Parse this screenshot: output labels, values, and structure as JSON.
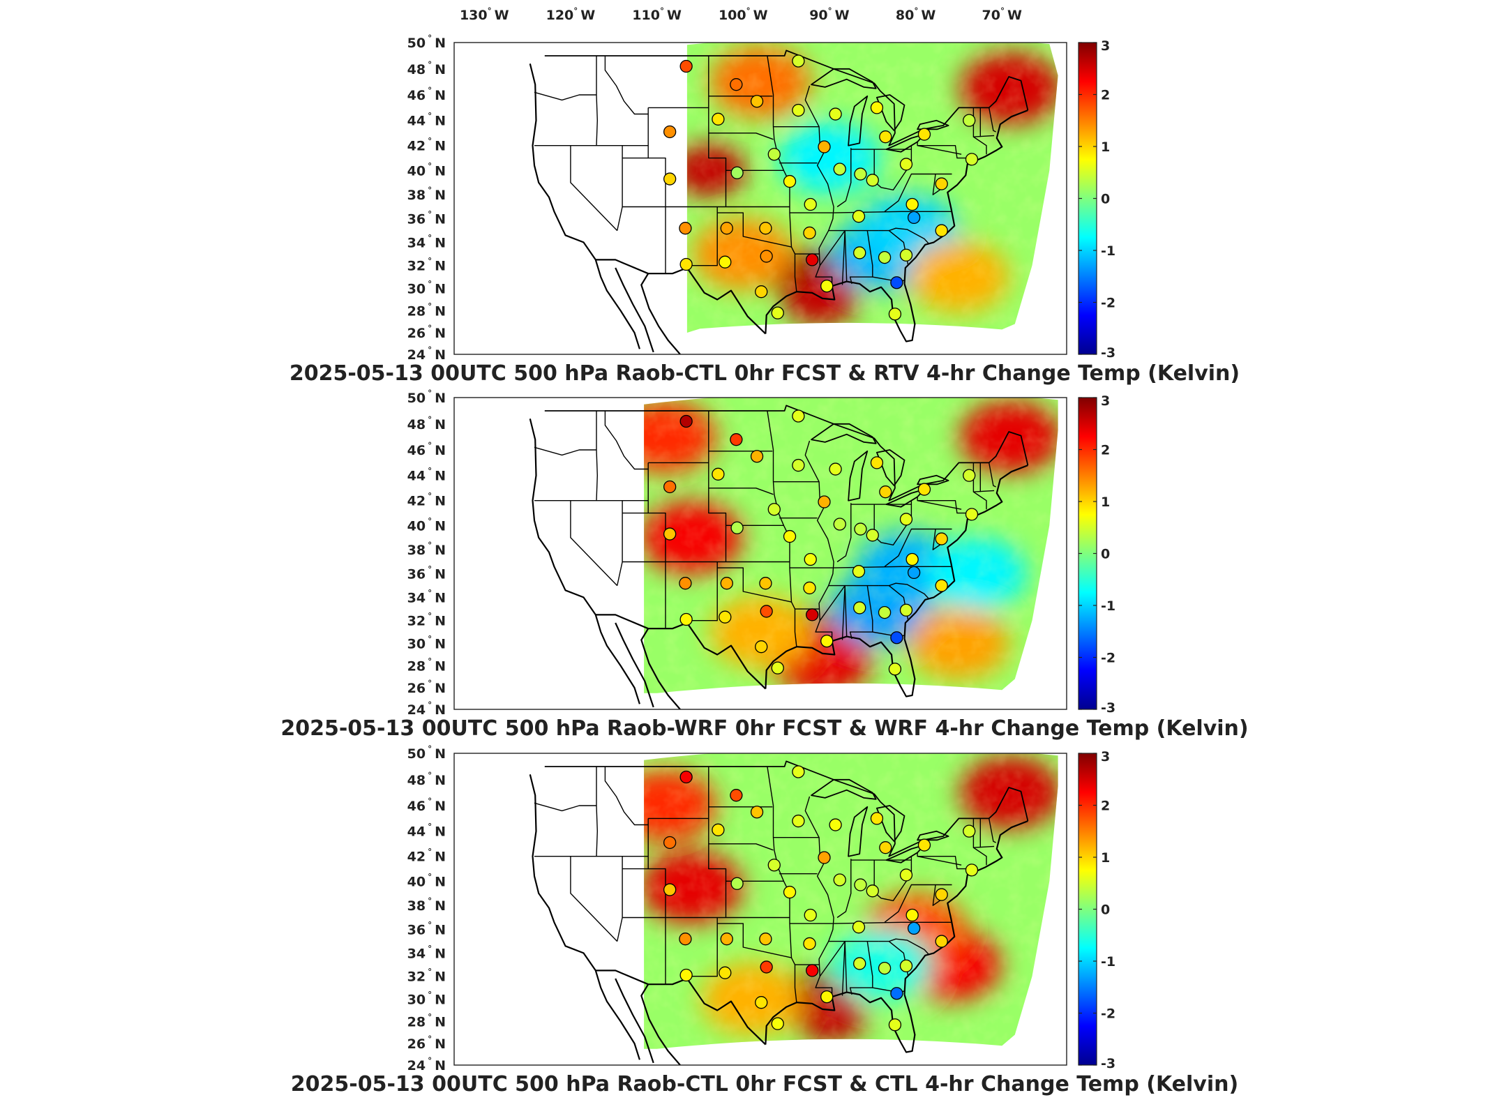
{
  "lon_labels": [
    "130",
    "120",
    "110",
    "100",
    "90",
    "80",
    "70"
  ],
  "lon_label_suffix": "W",
  "lat_labels": [
    "50",
    "48",
    "46",
    "44",
    "42",
    "40",
    "38",
    "36",
    "34",
    "32",
    "30",
    "28",
    "26",
    "24"
  ],
  "lat_label_suffix": "N",
  "colorbar": {
    "ticks": [
      "3",
      "2",
      "1",
      "0",
      "-1",
      "-2",
      "-3"
    ],
    "vmin": -3,
    "vmax": 3,
    "colormap": "jet"
  },
  "panels": [
    {
      "title": "2025-05-13 00UTC 500 hPa Raob-CTL 0hr FCST & RTV 4-hr Change Temp (Kelvin)",
      "field_model": "RTV",
      "field_west_lon": -106.5,
      "field_south_lat": 26.0,
      "hotspots": [
        {
          "lon": -104,
          "lat": 40,
          "value": 2.6
        },
        {
          "lon": -92.5,
          "lat": 31,
          "value": 3.0
        },
        {
          "lon": -91,
          "lat": 29,
          "value": 2.6
        },
        {
          "lon": -69,
          "lat": 46.5,
          "value": 2.5
        },
        {
          "lon": -98,
          "lat": 47,
          "value": 1.6
        },
        {
          "lon": -84,
          "lat": 33,
          "value": -1.2
        },
        {
          "lon": -81,
          "lat": 35,
          "value": -1.0
        },
        {
          "lon": -90,
          "lat": 41,
          "value": -0.8
        },
        {
          "lon": -75,
          "lat": 31,
          "value": 1.2
        },
        {
          "lon": -100,
          "lat": 33,
          "value": 1.4
        }
      ]
    },
    {
      "title": "2025-05-13 00UTC 500 hPa Raob-WRF 0hr FCST & WRF 4-hr Change Temp (Kelvin)",
      "field_model": "WRF",
      "field_west_lon": -111.5,
      "field_south_lat": 25.5,
      "hotspots": [
        {
          "lon": -106,
          "lat": 39,
          "value": 2.3
        },
        {
          "lon": -109,
          "lat": 47,
          "value": 2.0
        },
        {
          "lon": -92,
          "lat": 30.5,
          "value": 3.0
        },
        {
          "lon": -91,
          "lat": 28.5,
          "value": 2.4
        },
        {
          "lon": -69,
          "lat": 47,
          "value": 2.4
        },
        {
          "lon": -84,
          "lat": 33,
          "value": -1.3
        },
        {
          "lon": -81,
          "lat": 36.5,
          "value": -1.2
        },
        {
          "lon": -73,
          "lat": 36,
          "value": -0.8
        },
        {
          "lon": -75,
          "lat": 30,
          "value": 1.3
        },
        {
          "lon": -98,
          "lat": 31,
          "value": 1.2
        }
      ]
    },
    {
      "title": "2025-05-13 00UTC 500 hPa Raob-CTL 0hr FCST & CTL 4-hr Change Temp (Kelvin)",
      "field_model": "CTL",
      "field_west_lon": -111.5,
      "field_south_lat": 25.5,
      "hotspots": [
        {
          "lon": -106,
          "lat": 39.5,
          "value": 2.4
        },
        {
          "lon": -109,
          "lat": 46,
          "value": 2.0
        },
        {
          "lon": -92,
          "lat": 30,
          "value": 3.0
        },
        {
          "lon": -90,
          "lat": 28.5,
          "value": 2.6
        },
        {
          "lon": -76,
          "lat": 33,
          "value": 2.3
        },
        {
          "lon": -69,
          "lat": 47,
          "value": 2.5
        },
        {
          "lon": -80,
          "lat": 36,
          "value": 1.8
        },
        {
          "lon": -84,
          "lat": 33,
          "value": -0.6
        },
        {
          "lon": -99,
          "lat": 30,
          "value": 1.2
        }
      ]
    }
  ],
  "stations": [
    {
      "id": "s1",
      "lon": -106.6,
      "lat": 48.2,
      "panel_values": [
        1.8,
        2.7,
        2.3
      ]
    },
    {
      "id": "s2",
      "lon": -108.5,
      "lat": 43.1,
      "panel_values": [
        1.4,
        1.6,
        1.6
      ]
    },
    {
      "id": "s3",
      "lon": -108.5,
      "lat": 39.3,
      "panel_values": [
        1.0,
        1.1,
        1.1
      ]
    },
    {
      "id": "s4",
      "lon": -106.7,
      "lat": 35.2,
      "panel_values": [
        1.4,
        1.4,
        1.4
      ]
    },
    {
      "id": "s5",
      "lon": -106.6,
      "lat": 32.1,
      "panel_values": [
        0.9,
        0.8,
        0.8
      ]
    },
    {
      "id": "s6",
      "lon": -101.9,
      "lat": 35.2,
      "panel_values": [
        1.3,
        1.2,
        1.2
      ]
    },
    {
      "id": "s7",
      "lon": -102.1,
      "lat": 32.3,
      "panel_values": [
        0.8,
        0.9,
        0.9
      ]
    },
    {
      "id": "s8",
      "lon": -100.8,
      "lat": 46.8,
      "panel_values": [
        1.6,
        1.9,
        1.8
      ]
    },
    {
      "id": "s9",
      "lon": -102.9,
      "lat": 44.1,
      "panel_values": [
        0.9,
        0.9,
        0.9
      ]
    },
    {
      "id": "s10",
      "lon": -98.4,
      "lat": 45.5,
      "panel_values": [
        1.1,
        1.2,
        1.1
      ]
    },
    {
      "id": "s11",
      "lon": -100.7,
      "lat": 39.8,
      "panel_values": [
        0.2,
        0.3,
        0.3
      ]
    },
    {
      "id": "s12",
      "lon": -97.4,
      "lat": 35.2,
      "panel_values": [
        1.1,
        1.1,
        1.1
      ]
    },
    {
      "id": "s13",
      "lon": -97.3,
      "lat": 32.8,
      "panel_values": [
        1.4,
        1.8,
        1.9
      ]
    },
    {
      "id": "s14",
      "lon": -97.9,
      "lat": 29.7,
      "panel_values": [
        1.0,
        1.0,
        0.9
      ]
    },
    {
      "id": "s15",
      "lon": -96.0,
      "lat": 27.8,
      "panel_values": [
        0.6,
        0.6,
        0.7
      ]
    },
    {
      "id": "s16",
      "lon": -93.6,
      "lat": 48.6,
      "panel_values": [
        0.5,
        0.6,
        0.6
      ]
    },
    {
      "id": "s17",
      "lon": -96.4,
      "lat": 41.3,
      "panel_values": [
        0.4,
        0.5,
        0.5
      ]
    },
    {
      "id": "s18",
      "lon": -94.6,
      "lat": 39.1,
      "panel_values": [
        0.8,
        0.8,
        0.8
      ]
    },
    {
      "id": "s19",
      "lon": -93.6,
      "lat": 44.8,
      "panel_values": [
        0.6,
        0.5,
        0.6
      ]
    },
    {
      "id": "s20",
      "lon": -92.2,
      "lat": 37.2,
      "panel_values": [
        0.6,
        0.7,
        0.6
      ]
    },
    {
      "id": "s21",
      "lon": -92.3,
      "lat": 34.8,
      "panel_values": [
        1.0,
        0.9,
        0.9
      ]
    },
    {
      "id": "s22",
      "lon": -92.0,
      "lat": 32.5,
      "panel_values": [
        2.4,
        2.5,
        2.3
      ]
    },
    {
      "id": "s23",
      "lon": -90.3,
      "lat": 30.2,
      "panel_values": [
        0.7,
        0.8,
        0.8
      ]
    },
    {
      "id": "s24",
      "lon": -90.6,
      "lat": 41.9,
      "panel_values": [
        1.2,
        1.2,
        1.3
      ]
    },
    {
      "id": "s25",
      "lon": -88.8,
      "lat": 40.1,
      "panel_values": [
        0.4,
        0.4,
        0.5
      ]
    },
    {
      "id": "s26",
      "lon": -89.3,
      "lat": 44.5,
      "panel_values": [
        0.6,
        0.6,
        0.7
      ]
    },
    {
      "id": "s27",
      "lon": -86.6,
      "lat": 36.2,
      "panel_values": [
        0.6,
        0.6,
        0.6
      ]
    },
    {
      "id": "s28",
      "lon": -86.5,
      "lat": 33.1,
      "panel_values": [
        0.5,
        0.5,
        0.5
      ]
    },
    {
      "id": "s29",
      "lon": -86.4,
      "lat": 39.7,
      "panel_values": [
        0.4,
        0.4,
        0.4
      ]
    },
    {
      "id": "s30",
      "lon": -84.5,
      "lat": 45.0,
      "panel_values": [
        0.8,
        0.9,
        0.9
      ]
    },
    {
      "id": "s31",
      "lon": -83.5,
      "lat": 42.7,
      "panel_values": [
        0.9,
        1.0,
        1.0
      ]
    },
    {
      "id": "s32",
      "lon": -83.6,
      "lat": 32.7,
      "panel_values": [
        0.4,
        0.4,
        0.4
      ]
    },
    {
      "id": "s33",
      "lon": -82.2,
      "lat": 30.5,
      "panel_values": [
        -1.8,
        -1.8,
        -1.6
      ]
    },
    {
      "id": "s34",
      "lon": -82.4,
      "lat": 27.7,
      "panel_values": [
        0.6,
        0.6,
        0.6
      ]
    },
    {
      "id": "s35",
      "lon": -81.1,
      "lat": 32.9,
      "panel_values": [
        0.5,
        0.5,
        0.5
      ]
    },
    {
      "id": "s36",
      "lon": -80.4,
      "lat": 37.2,
      "panel_values": [
        0.8,
        0.8,
        0.8
      ]
    },
    {
      "id": "s37",
      "lon": -80.2,
      "lat": 36.1,
      "panel_values": [
        -1.3,
        -1.3,
        -1.3
      ]
    },
    {
      "id": "s38",
      "lon": -81.1,
      "lat": 40.5,
      "panel_values": [
        0.6,
        0.6,
        0.6
      ]
    },
    {
      "id": "s39",
      "lon": -79.0,
      "lat": 42.9,
      "panel_values": [
        0.9,
        0.9,
        0.9
      ]
    },
    {
      "id": "s40",
      "lon": -77.0,
      "lat": 38.9,
      "panel_values": [
        1.0,
        1.0,
        1.0
      ]
    },
    {
      "id": "s41",
      "lon": -77.0,
      "lat": 35.0,
      "panel_values": [
        0.9,
        0.9,
        1.0
      ]
    },
    {
      "id": "s42",
      "lon": -73.5,
      "lat": 40.9,
      "panel_values": [
        0.5,
        0.6,
        0.6
      ]
    },
    {
      "id": "s43",
      "lon": -73.8,
      "lat": 44.0,
      "panel_values": [
        0.4,
        0.5,
        0.5
      ]
    },
    {
      "id": "s44",
      "lon": -85.0,
      "lat": 39.2,
      "panel_values": [
        0.5,
        0.5,
        0.5
      ]
    }
  ]
}
